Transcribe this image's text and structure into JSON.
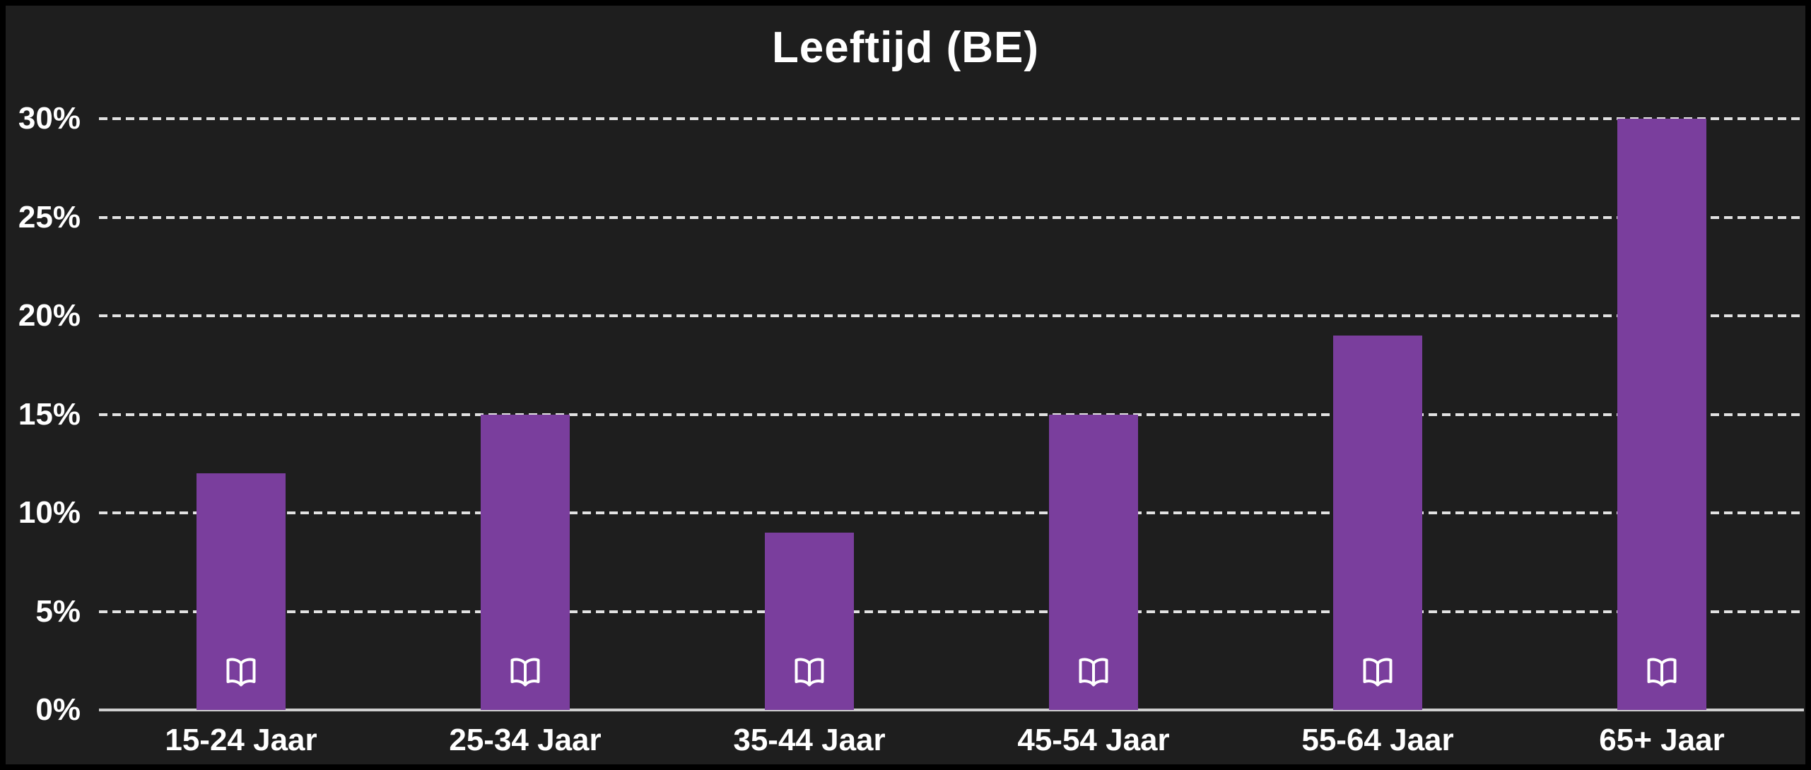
{
  "title": "Leeftijd (BE)",
  "chart_data": {
    "type": "bar",
    "title": "Leeftijd (BE)",
    "categories": [
      "15-24 Jaar",
      "25-34 Jaar",
      "35-44 Jaar",
      "45-54 Jaar",
      "55-64 Jaar",
      "65+ Jaar"
    ],
    "values": [
      12,
      15,
      9,
      15,
      19,
      30
    ],
    "unit": "%",
    "xlabel": "",
    "ylabel": "",
    "ylim": [
      0,
      30
    ],
    "y_ticks": [
      0,
      5,
      10,
      15,
      20,
      25,
      30
    ],
    "grid": "horizontal dashed lines, solid baseline at 0%",
    "legend": "none",
    "bar_icon": "open-book",
    "colors": {
      "background": "#1e1e1e",
      "frame_border": "#000000",
      "bar": "#7a3e9d",
      "gridline": "#e2e2e2",
      "baseline": "#cfcfcf",
      "text": "#ffffff",
      "icon": "#ffffff"
    }
  }
}
